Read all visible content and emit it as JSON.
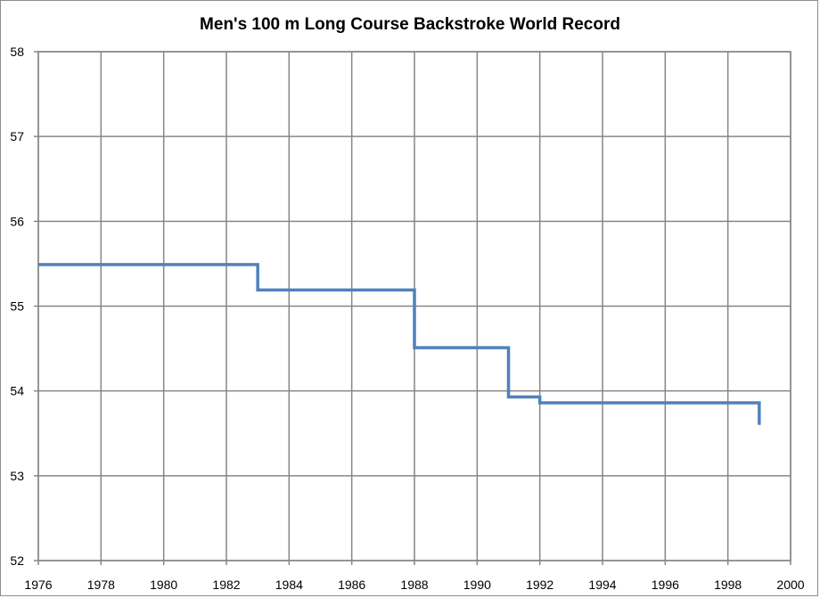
{
  "chart_data": {
    "type": "line",
    "title": "Men's 100 m Long Course Backstroke World Record",
    "xlabel": "",
    "ylabel": "",
    "xlim": [
      1976,
      2000
    ],
    "ylim": [
      52,
      58
    ],
    "x_ticks": [
      1976,
      1978,
      1980,
      1982,
      1984,
      1986,
      1988,
      1990,
      1992,
      1994,
      1996,
      1998,
      2000
    ],
    "y_ticks": [
      52,
      53,
      54,
      55,
      56,
      57,
      58
    ],
    "x_tick_labels": [
      "1976",
      "1978",
      "1980",
      "1982",
      "1984",
      "1986",
      "1988",
      "1990",
      "1992",
      "1994",
      "1996",
      "1998",
      "2000"
    ],
    "y_tick_labels": [
      "52",
      "53",
      "54",
      "55",
      "56",
      "57",
      "58"
    ],
    "grid": true,
    "legend": "none",
    "step": true,
    "series": [
      {
        "color": "#4f81bd",
        "x": [
          1976,
          1983,
          1988,
          1991,
          1992,
          1999,
          1999
        ],
        "y": [
          55.49,
          55.19,
          54.51,
          53.93,
          53.86,
          53.86,
          53.6
        ]
      }
    ]
  }
}
